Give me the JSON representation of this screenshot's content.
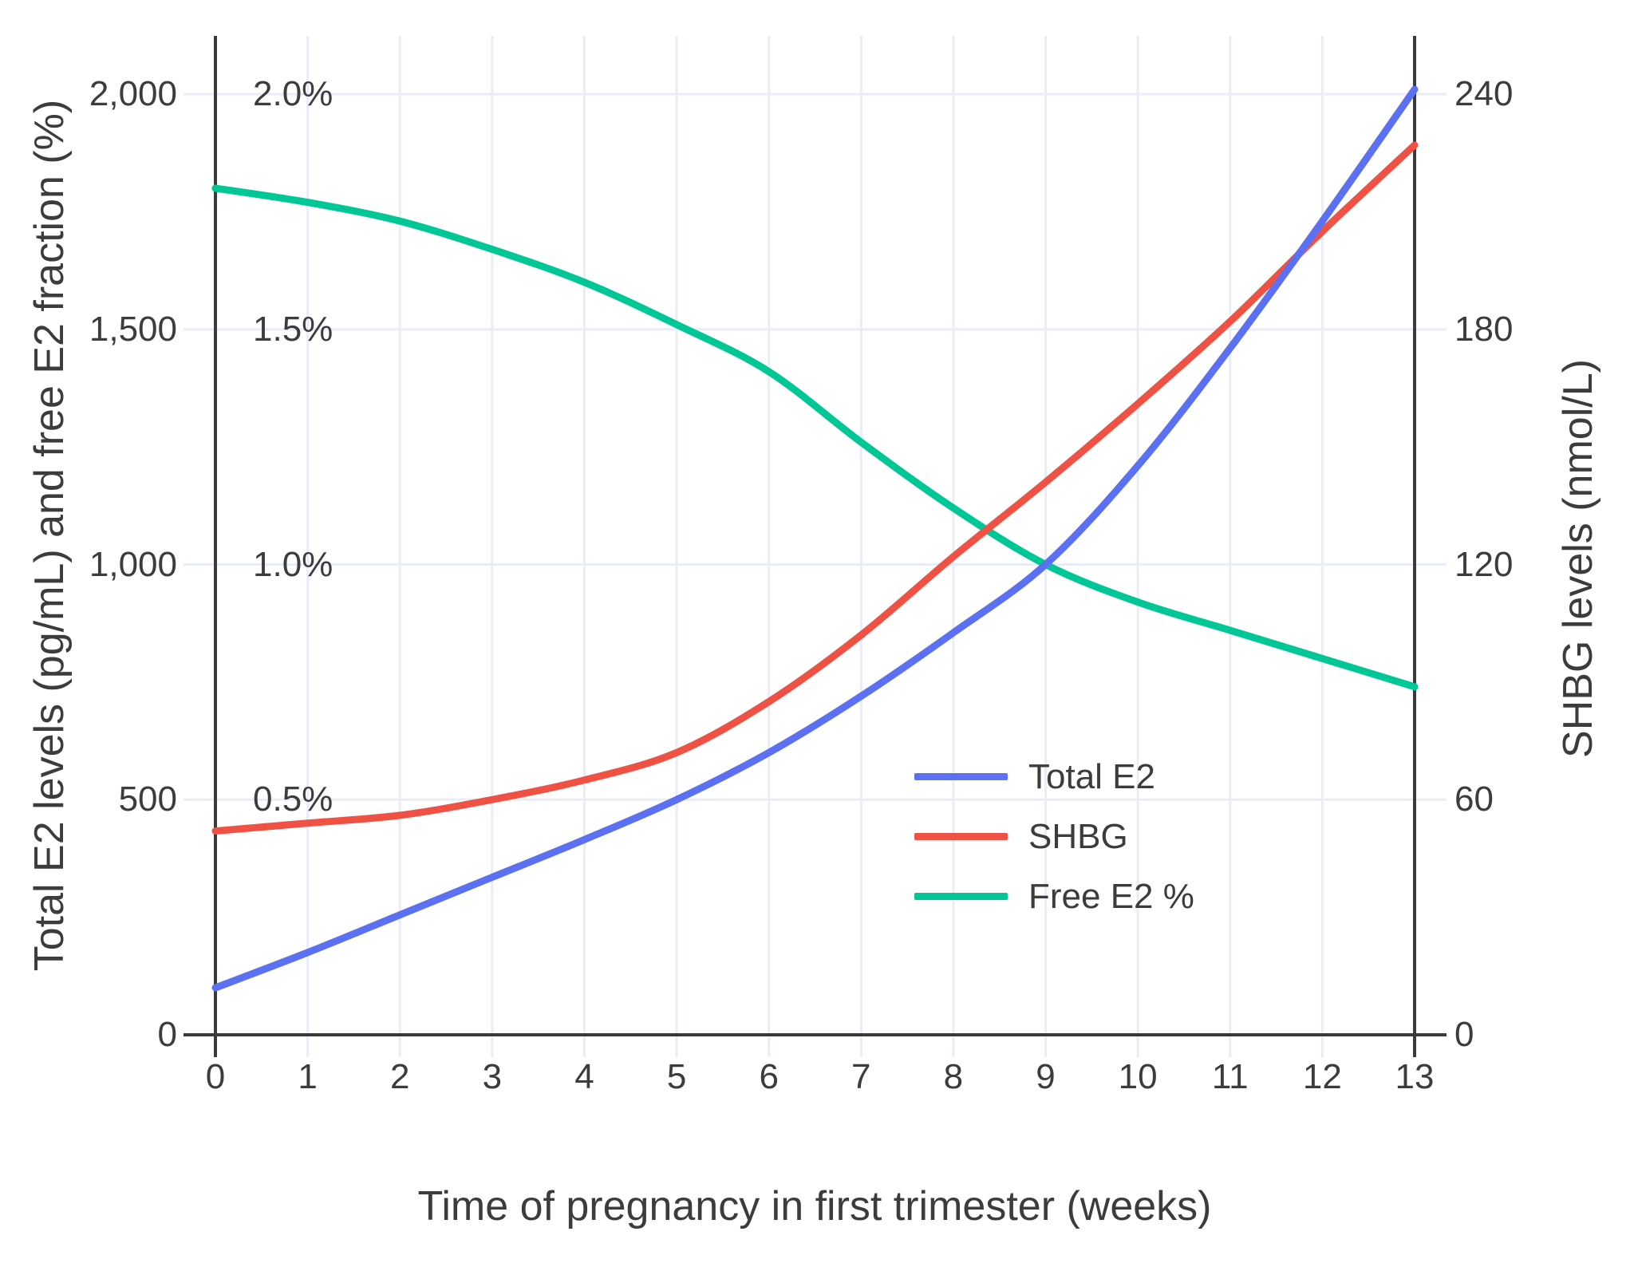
{
  "figure": {
    "background": "#FFFFFF",
    "text_color": "#3C3C3C",
    "axis_line_color": "#3A3A3A",
    "grid_color": "#E9EDF8",
    "series_colors": {
      "total_e2_blue": "#5B70F2",
      "shbg_red": "#EF5244",
      "free_e2_green": "#00C795"
    }
  },
  "chart_data": {
    "type": "line",
    "title": "",
    "xlabel": "Time of pregnancy in first trimester (weeks)",
    "ylabel_left": "Total E2 levels (pg/mL) and free E2 fraction (%)",
    "ylabel_right": "SHBG levels (nmol/L)",
    "x": [
      0,
      1,
      2,
      3,
      4,
      5,
      6,
      7,
      8,
      9,
      10,
      11,
      12,
      13
    ],
    "x_range": [
      0,
      13
    ],
    "y_left_range_pg_ml": [
      0,
      2000
    ],
    "y_left_range_percent": [
      0,
      2.0
    ],
    "y_right_range_nmol_l": [
      0,
      240
    ],
    "grid": true,
    "legend_position": "inside-middle-right",
    "series": [
      {
        "name": "Total E2",
        "axis": "left",
        "unit": "pg/mL",
        "color": "#5B70F2",
        "values": [
          100,
          175,
          255,
          335,
          415,
          500,
          600,
          720,
          855,
          1000,
          1210,
          1460,
          1730,
          2010
        ]
      },
      {
        "name": "SHBG",
        "axis": "right",
        "unit": "nmol/L",
        "color": "#EF5244",
        "values": [
          52,
          54,
          56,
          60,
          65,
          72,
          85,
          102,
          122,
          141,
          161,
          182,
          205,
          227
        ]
      },
      {
        "name": "Free E2 %",
        "axis": "left-percent",
        "unit": "%",
        "values_note": "plotted against left axis where 2,000 pg/mL line = 2.0%",
        "color": "#00C795",
        "values": [
          1.8,
          1.77,
          1.73,
          1.67,
          1.6,
          1.51,
          1.41,
          1.26,
          1.12,
          1.0,
          0.92,
          0.86,
          0.8,
          0.74
        ]
      }
    ],
    "axes": {
      "left_ticks": [
        {
          "label": "0",
          "value": 0
        },
        {
          "label": "500",
          "value": 500
        },
        {
          "label": "1,000",
          "value": 1000
        },
        {
          "label": "1,500",
          "value": 1500
        },
        {
          "label": "2,000",
          "value": 2000
        }
      ],
      "left_percent_ticks": [
        {
          "label": "0.5%",
          "value": 500
        },
        {
          "label": "1.0%",
          "value": 1000
        },
        {
          "label": "1.5%",
          "value": 1500
        },
        {
          "label": "2.0%",
          "value": 2000
        }
      ],
      "right_ticks": [
        {
          "label": "0",
          "value": 0
        },
        {
          "label": "60",
          "value": 60
        },
        {
          "label": "120",
          "value": 120
        },
        {
          "label": "180",
          "value": 180
        },
        {
          "label": "240",
          "value": 240
        }
      ],
      "x_ticks": [
        {
          "label": "0",
          "value": 0
        },
        {
          "label": "1",
          "value": 1
        },
        {
          "label": "2",
          "value": 2
        },
        {
          "label": "3",
          "value": 3
        },
        {
          "label": "4",
          "value": 4
        },
        {
          "label": "5",
          "value": 5
        },
        {
          "label": "6",
          "value": 6
        },
        {
          "label": "7",
          "value": 7
        },
        {
          "label": "8",
          "value": 8
        },
        {
          "label": "9",
          "value": 9
        },
        {
          "label": "10",
          "value": 10
        },
        {
          "label": "11",
          "value": 11
        },
        {
          "label": "12",
          "value": 12
        },
        {
          "label": "13",
          "value": 13
        }
      ]
    },
    "legend": [
      {
        "label": "Total E2",
        "color": "#5B70F2"
      },
      {
        "label": "SHBG",
        "color": "#EF5244"
      },
      {
        "label": "Free E2 %",
        "color": "#00C795"
      }
    ]
  }
}
